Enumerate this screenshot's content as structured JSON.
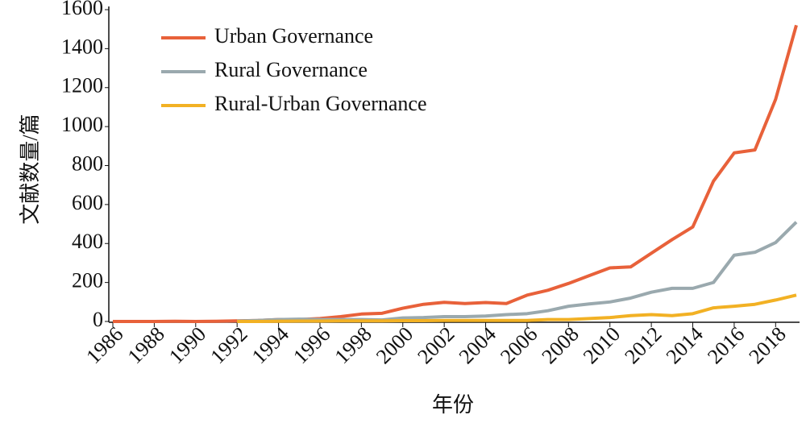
{
  "chart_data": {
    "type": "line",
    "x": [
      1986,
      1987,
      1988,
      1989,
      1990,
      1991,
      1992,
      1993,
      1994,
      1995,
      1996,
      1997,
      1998,
      1999,
      2000,
      2001,
      2002,
      2003,
      2004,
      2005,
      2006,
      2007,
      2008,
      2009,
      2010,
      2011,
      2012,
      2013,
      2014,
      2015,
      2016,
      2017,
      2018,
      2019
    ],
    "series": [
      {
        "name": "Urban Governance",
        "color": "#e8613a",
        "values": [
          0,
          0,
          0,
          1,
          0,
          1,
          3,
          5,
          10,
          10,
          15,
          25,
          38,
          42,
          68,
          88,
          98,
          92,
          97,
          92,
          135,
          160,
          195,
          235,
          275,
          280,
          350,
          420,
          485,
          720,
          865,
          880,
          1140,
          1520
        ]
      },
      {
        "name": "Rural Governance",
        "color": "#9aa9ae",
        "values": [
          null,
          null,
          null,
          null,
          null,
          null,
          2,
          5,
          10,
          12,
          10,
          10,
          10,
          8,
          18,
          20,
          25,
          25,
          28,
          35,
          40,
          55,
          78,
          90,
          100,
          120,
          150,
          170,
          170,
          200,
          340,
          355,
          405,
          510
        ]
      },
      {
        "name": "Rural-Urban Governance",
        "color": "#f2b124",
        "values": [
          null,
          null,
          null,
          null,
          null,
          null,
          0,
          0,
          1,
          2,
          2,
          3,
          3,
          3,
          4,
          4,
          5,
          5,
          5,
          5,
          5,
          10,
          10,
          15,
          20,
          30,
          35,
          30,
          40,
          70,
          78,
          88,
          110,
          135
        ]
      }
    ],
    "xlim": [
      1986,
      2019
    ],
    "xticks": [
      1986,
      1988,
      1990,
      1992,
      1994,
      1996,
      1998,
      2000,
      2002,
      2004,
      2006,
      2008,
      2010,
      2012,
      2014,
      2016,
      2018
    ],
    "ylim": [
      0,
      1600
    ],
    "yticks": [
      0,
      200,
      400,
      600,
      800,
      1000,
      1200,
      1400,
      1600
    ],
    "x_label": "年份",
    "y_label": "文献数量/篇",
    "legend": "upper left",
    "grid": false
  }
}
